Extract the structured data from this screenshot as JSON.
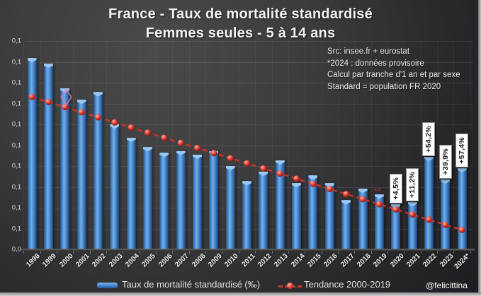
{
  "title": {
    "line1": "France - Taux de mortalité standardisé",
    "line2": "Femmes seules - 5 à 14 ans"
  },
  "source_note": {
    "lines": [
      "Src: insee.fr + eurostat",
      "*2024 : données provisoire",
      "Calcul par tranche d'1 an et par sexe",
      "Standard = population FR 2020"
    ]
  },
  "watermark": "@felicittina",
  "legend": {
    "bars_label": "Taux de mortalité standardisé (‰)",
    "trend_label": "Tendance 2000-2019"
  },
  "y_axis": {
    "tick_labels_top_to_bottom": [
      "0,1",
      "0,1",
      "0,1",
      "0,1",
      "0,1",
      "0,1",
      "0,1",
      "0,1",
      "0,1",
      "0,1",
      "0,0"
    ]
  },
  "chart_data": {
    "type": "bar",
    "title": "France - Taux de mortalité standardisé — Femmes seules - 5 à 14 ans",
    "xlabel": "",
    "ylabel": "Taux de mortalité standardisé (‰)",
    "ylim": [
      0,
      0.11
    ],
    "grid": "horizontal",
    "legend_position": "bottom",
    "categories": [
      "1998",
      "1999",
      "2000",
      "2001",
      "2002",
      "2003",
      "2004",
      "2005",
      "2006",
      "2007",
      "2008",
      "2009",
      "2010",
      "2011",
      "2012",
      "2013",
      "2014",
      "2015",
      "2016",
      "2017",
      "2018",
      "2019",
      "2020",
      "2021",
      "2022",
      "2023",
      "2024*"
    ],
    "series": [
      {
        "name": "Taux de mortalité standardisé (‰)",
        "type": "bar",
        "values": [
          0.101,
          0.098,
          0.085,
          0.079,
          0.083,
          0.066,
          0.059,
          0.054,
          0.051,
          0.052,
          0.05,
          0.052,
          0.044,
          0.036,
          0.041,
          0.047,
          0.035,
          0.039,
          0.035,
          0.026,
          0.032,
          0.029,
          0.024,
          0.025,
          0.049,
          0.037,
          0.043
        ]
      },
      {
        "name": "Tendance 2000-2019",
        "type": "line",
        "values": [
          0.0805,
          0.0778,
          0.0751,
          0.0724,
          0.0697,
          0.067,
          0.0643,
          0.0616,
          0.0589,
          0.0562,
          0.0535,
          0.0508,
          0.0481,
          0.0454,
          0.0427,
          0.04,
          0.0373,
          0.0346,
          0.0319,
          0.0292,
          0.0265,
          0.0238,
          0.0211,
          0.0184,
          0.0157,
          0.013,
          0.0103
        ]
      }
    ],
    "annotations": [
      {
        "category": "2020",
        "label": "+4,5%"
      },
      {
        "category": "2021",
        "label": "+11,2%"
      },
      {
        "category": "2022",
        "label": "+54,2%"
      },
      {
        "category": "2023",
        "label": "+39,9%"
      },
      {
        "category": "2024*",
        "label": "+57,4%"
      }
    ],
    "decorations": [
      {
        "type": "diamond-outline",
        "category": "2000"
      },
      {
        "type": "double-arrow",
        "category": "2019"
      }
    ]
  },
  "colors": {
    "bar_main": "#4c8fd8",
    "bar_dark": "#1e4c87",
    "bar_light": "#86b9ef",
    "trend_red": "#cf3226",
    "annotation_bg": "#ffffff",
    "background_dark": "#242428",
    "text_light": "#f0f0f0"
  }
}
